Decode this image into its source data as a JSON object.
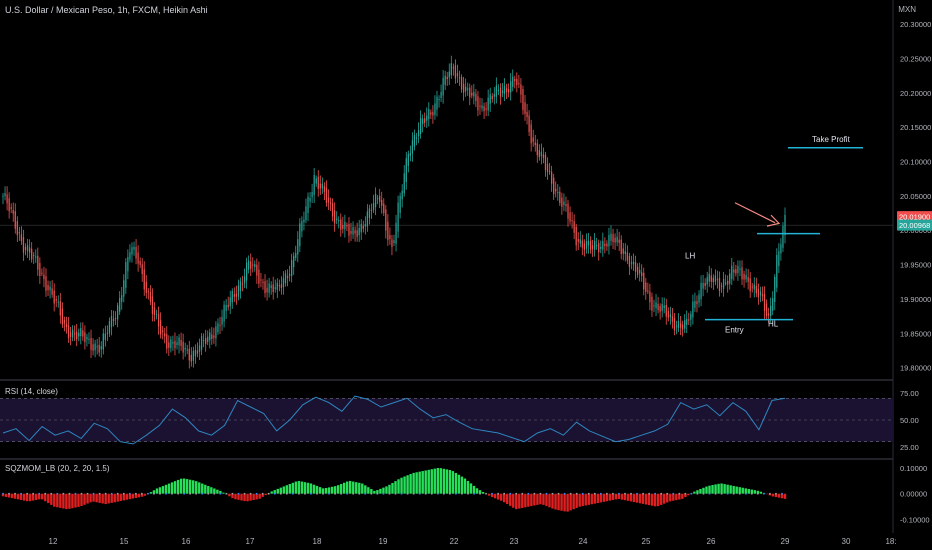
{
  "header": {
    "title": "U.S. Dollar / Mexican Peso, 1h, FXCM, Heikin Ashi",
    "currency": "MXN"
  },
  "colors": {
    "background": "#000000",
    "bull": "#26a69a",
    "bear": "#ef5350",
    "rsi_line": "#2e86c1",
    "rsi_band": "#1a1230",
    "level_line": "#22b3d6",
    "arrow": "#f28b82",
    "price_tag_red": "#f24d4d",
    "price_tag_teal": "#26a69a",
    "sqz_bull": "#26e05a",
    "sqz_bear": "#e02020"
  },
  "annotations": {
    "take_profit": "Take Profit",
    "entry": "Entry",
    "lh": "LH",
    "hl": "HL"
  },
  "price_tags": {
    "last": "20.01900",
    "entry_level": "20.00968"
  },
  "rsi_pane": {
    "label": "RSI (14, close)"
  },
  "sqz_pane": {
    "label": "SQZMOM_LB (20, 2, 20, 1.5)"
  },
  "chart_data": [
    {
      "type": "candlestick",
      "title": "U.S. Dollar / Mexican Peso, 1h, FXCM, Heikin Ashi",
      "x_ticks": [
        "12",
        "15",
        "16",
        "17",
        "18",
        "19",
        "22",
        "23",
        "24",
        "25",
        "26",
        "29",
        "30",
        "18:"
      ],
      "y_ticks": [
        "20.30000",
        "20.25000",
        "20.20000",
        "20.15000",
        "20.10000",
        "20.05000",
        "20.00000",
        "19.95000",
        "19.90000",
        "19.85000",
        "19.80000"
      ],
      "ylim": [
        19.785,
        20.335
      ],
      "levels": {
        "take_profit": 20.12,
        "entry": 19.995,
        "stop": 19.87
      },
      "close_path": [
        [
          0,
          20.05
        ],
        [
          10,
          19.98
        ],
        [
          22,
          19.92
        ],
        [
          30,
          19.86
        ],
        [
          40,
          19.84
        ],
        [
          48,
          19.83
        ],
        [
          56,
          19.89
        ],
        [
          62,
          19.97
        ],
        [
          66,
          19.96
        ],
        [
          74,
          19.87
        ],
        [
          80,
          19.84
        ],
        [
          92,
          19.82
        ],
        [
          100,
          19.84
        ],
        [
          110,
          19.89
        ],
        [
          120,
          19.95
        ],
        [
          128,
          19.92
        ],
        [
          134,
          19.91
        ],
        [
          142,
          19.96
        ],
        [
          152,
          20.08
        ],
        [
          160,
          20.03
        ],
        [
          170,
          19.99
        ],
        [
          178,
          20.02
        ],
        [
          184,
          20.05
        ],
        [
          190,
          19.97
        ],
        [
          198,
          20.12
        ],
        [
          210,
          20.18
        ],
        [
          220,
          20.24
        ],
        [
          226,
          20.2
        ],
        [
          234,
          20.18
        ],
        [
          242,
          20.2
        ],
        [
          250,
          20.22
        ],
        [
          260,
          20.12
        ],
        [
          270,
          20.06
        ],
        [
          280,
          19.99
        ],
        [
          288,
          19.97
        ],
        [
          296,
          19.99
        ],
        [
          306,
          19.96
        ],
        [
          316,
          19.9
        ],
        [
          326,
          19.87
        ],
        [
          334,
          19.86
        ],
        [
          342,
          19.93
        ],
        [
          350,
          19.92
        ],
        [
          356,
          19.94
        ],
        [
          364,
          19.93
        ],
        [
          370,
          19.9
        ],
        [
          374,
          19.87
        ],
        [
          378,
          19.96
        ],
        [
          382,
          20.01
        ]
      ]
    },
    {
      "type": "line",
      "title": "RSI (14, close)",
      "y_ticks": [
        "75.00",
        "50.00",
        "25.00"
      ],
      "ylim": [
        15,
        85
      ],
      "band": [
        30,
        70
      ],
      "values": [
        38,
        42,
        31,
        44,
        36,
        40,
        33,
        47,
        42,
        30,
        28,
        36,
        45,
        60,
        52,
        40,
        36,
        45,
        68,
        62,
        56,
        40,
        50,
        64,
        71,
        66,
        58,
        72,
        69,
        62,
        66,
        70,
        60,
        52,
        55,
        48,
        42,
        40,
        38,
        34,
        30,
        38,
        42,
        36,
        48,
        40,
        35,
        30,
        32,
        36,
        40,
        46,
        66,
        60,
        64,
        54,
        66,
        58,
        41,
        68,
        70
      ]
    },
    {
      "type": "bar",
      "title": "SQZMOM_LB (20, 2, 20, 1.5)",
      "y_ticks": [
        "0.10000",
        "0.00000",
        "-0.10000"
      ],
      "ylim": [
        -0.14,
        0.13
      ],
      "values": [
        -0.01,
        -0.02,
        -0.03,
        -0.02,
        -0.05,
        -0.06,
        -0.05,
        -0.03,
        -0.04,
        -0.03,
        -0.02,
        -0.01,
        0.02,
        0.04,
        0.06,
        0.05,
        0.03,
        0.01,
        -0.02,
        -0.03,
        -0.02,
        0.01,
        0.03,
        0.05,
        0.04,
        0.02,
        0.03,
        0.05,
        0.04,
        0.01,
        0.03,
        0.06,
        0.08,
        0.09,
        0.1,
        0.09,
        0.06,
        0.02,
        -0.01,
        -0.03,
        -0.06,
        -0.05,
        -0.04,
        -0.06,
        -0.07,
        -0.05,
        -0.04,
        -0.03,
        -0.02,
        -0.03,
        -0.04,
        -0.05,
        -0.03,
        -0.02,
        0.01,
        0.03,
        0.04,
        0.03,
        0.02,
        0.01,
        -0.01,
        -0.02
      ]
    }
  ]
}
